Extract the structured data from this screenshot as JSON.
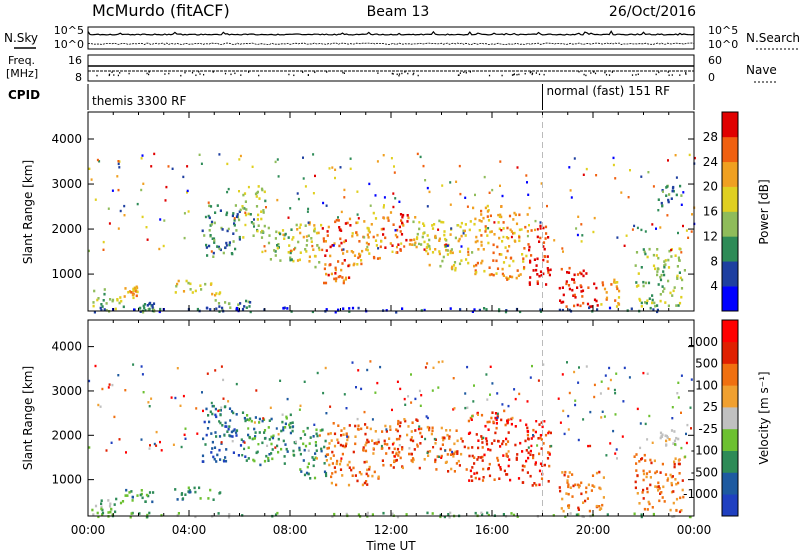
{
  "header": {
    "station": "McMurdo (fitACF)",
    "beam": "Beam 13",
    "date": "26/Oct/2016"
  },
  "noise_panel": {
    "left_label": "N.Sky",
    "right_label": "N.Search",
    "left_ticks": [
      "10^5",
      "10^0"
    ],
    "right_ticks": [
      "10^5",
      "10^0"
    ]
  },
  "freq_panel": {
    "left_label_1": "Freq.",
    "left_label_2": "[MHz]",
    "right_label": "Nave",
    "left_ticks": [
      "16",
      "8"
    ],
    "right_ticks": [
      "60",
      "0"
    ]
  },
  "cpid": {
    "label": "CPID",
    "segments": [
      {
        "name": "themis 3300 RF",
        "start_hour": 0,
        "end_hour": 18
      },
      {
        "name": "normal (fast) 151 RF",
        "start_hour": 18,
        "end_hour": 24
      }
    ]
  },
  "chart_data": [
    {
      "type": "heatmap",
      "name": "power",
      "ylabel": "Slant Range [km]",
      "xlabel": "",
      "ylim": [
        180,
        4600
      ],
      "xlim": [
        0,
        24
      ],
      "y_ticks": [
        "1000",
        "2000",
        "3000",
        "4000"
      ],
      "colorbar": {
        "label": "Power [dB]",
        "ticks": [
          "4",
          "8",
          "12",
          "16",
          "20",
          "24",
          "28"
        ],
        "colors": [
          "#0000ff",
          "#1e3fa0",
          "#2e8b57",
          "#8fbc5a",
          "#e0d020",
          "#f0a020",
          "#f06010",
          "#e00000"
        ]
      },
      "regions": [
        {
          "t0": 0.0,
          "t1": 1.4,
          "r0": 200,
          "r1": 700,
          "level": 3
        },
        {
          "t0": 1.4,
          "t1": 2.0,
          "r0": 500,
          "r1": 750,
          "level": 5
        },
        {
          "t0": 2.0,
          "t1": 2.6,
          "r0": 180,
          "r1": 400,
          "level": 2
        },
        {
          "t0": 3.4,
          "t1": 5.2,
          "r0": 550,
          "r1": 900,
          "level": 4
        },
        {
          "t0": 5.0,
          "t1": 6.4,
          "r0": 200,
          "r1": 450,
          "level": 2
        },
        {
          "t0": 4.5,
          "t1": 6.0,
          "r0": 1400,
          "r1": 2600,
          "level": 2
        },
        {
          "t0": 6.0,
          "t1": 7.0,
          "r0": 1800,
          "r1": 3000,
          "level": 3
        },
        {
          "t0": 7.0,
          "t1": 8.2,
          "r0": 1300,
          "r1": 2100,
          "level": 3
        },
        {
          "t0": 8.2,
          "t1": 9.2,
          "r0": 1100,
          "r1": 2200,
          "level": 4
        },
        {
          "t0": 9.2,
          "t1": 10.4,
          "r0": 800,
          "r1": 2300,
          "level": 6
        },
        {
          "t0": 10.4,
          "t1": 11.6,
          "r0": 1200,
          "r1": 2400,
          "level": 5
        },
        {
          "t0": 11.6,
          "t1": 12.8,
          "r0": 1500,
          "r1": 2400,
          "level": 6
        },
        {
          "t0": 12.8,
          "t1": 14.0,
          "r0": 1200,
          "r1": 2300,
          "level": 4
        },
        {
          "t0": 14.0,
          "t1": 15.2,
          "r0": 1100,
          "r1": 2200,
          "level": 4
        },
        {
          "t0": 15.2,
          "t1": 16.4,
          "r0": 1000,
          "r1": 2600,
          "level": 5
        },
        {
          "t0": 16.4,
          "t1": 17.4,
          "r0": 900,
          "r1": 2400,
          "level": 5
        },
        {
          "t0": 17.4,
          "t1": 18.3,
          "r0": 700,
          "r1": 2200,
          "level": 7
        },
        {
          "t0": 18.6,
          "t1": 20.2,
          "r0": 300,
          "r1": 1200,
          "level": 7
        },
        {
          "t0": 20.2,
          "t1": 21.0,
          "r0": 300,
          "r1": 900,
          "level": 5
        },
        {
          "t0": 21.6,
          "t1": 23.6,
          "r0": 300,
          "r1": 1600,
          "level": 3
        },
        {
          "t0": 22.5,
          "t1": 23.6,
          "r0": 2500,
          "r1": 3000,
          "level": 2
        },
        {
          "t0": 0.0,
          "t1": 24.0,
          "r0": 180,
          "r1": 280,
          "level": 1
        }
      ]
    },
    {
      "type": "heatmap",
      "name": "velocity",
      "ylabel": "Slant Range [km]",
      "xlabel": "Time UT",
      "ylim": [
        180,
        4600
      ],
      "xlim": [
        0,
        24
      ],
      "y_ticks": [
        "1000",
        "2000",
        "3000",
        "4000"
      ],
      "x_ticks": [
        "00:00",
        "04:00",
        "08:00",
        "12:00",
        "16:00",
        "20:00",
        "00:00"
      ],
      "colorbar": {
        "label": "Velocity [m s⁻¹]",
        "ticks": [
          "1000",
          "500",
          "100",
          "25",
          "-25",
          "-100",
          "-500",
          "-1000"
        ],
        "colors": [
          "#2040c0",
          "#1e5aa0",
          "#2e8b57",
          "#6cc030",
          "#c0c0c0",
          "#f0a030",
          "#f07010",
          "#e02000",
          "#ff0000"
        ]
      },
      "regions": [
        {
          "t0": 0.0,
          "t1": 1.4,
          "r0": 200,
          "r1": 700,
          "level": 3
        },
        {
          "t0": 1.4,
          "t1": 2.6,
          "r0": 500,
          "r1": 800,
          "level": 2
        },
        {
          "t0": 3.4,
          "t1": 5.2,
          "r0": 550,
          "r1": 900,
          "level": 2
        },
        {
          "t0": 4.5,
          "t1": 6.2,
          "r0": 1400,
          "r1": 2700,
          "level": 1
        },
        {
          "t0": 6.2,
          "t1": 8.2,
          "r0": 1300,
          "r1": 2500,
          "level": 2
        },
        {
          "t0": 8.2,
          "t1": 9.4,
          "r0": 1000,
          "r1": 2200,
          "level": 2
        },
        {
          "t0": 9.4,
          "t1": 11.6,
          "r0": 900,
          "r1": 2300,
          "level": 6
        },
        {
          "t0": 11.6,
          "t1": 13.6,
          "r0": 1200,
          "r1": 2400,
          "level": 6
        },
        {
          "t0": 13.6,
          "t1": 15.0,
          "r0": 1200,
          "r1": 2200,
          "level": 6
        },
        {
          "t0": 15.0,
          "t1": 17.0,
          "r0": 1000,
          "r1": 2600,
          "level": 7
        },
        {
          "t0": 17.0,
          "t1": 18.3,
          "r0": 900,
          "r1": 2300,
          "level": 7
        },
        {
          "t0": 18.6,
          "t1": 20.4,
          "r0": 300,
          "r1": 1200,
          "level": 6
        },
        {
          "t0": 21.6,
          "t1": 23.6,
          "r0": 300,
          "r1": 1600,
          "level": 6
        },
        {
          "t0": 22.6,
          "t1": 23.4,
          "r0": 1800,
          "r1": 2200,
          "level": 4
        },
        {
          "t0": 0.0,
          "t1": 24.0,
          "r0": 180,
          "r1": 280,
          "level": 3
        }
      ]
    }
  ]
}
